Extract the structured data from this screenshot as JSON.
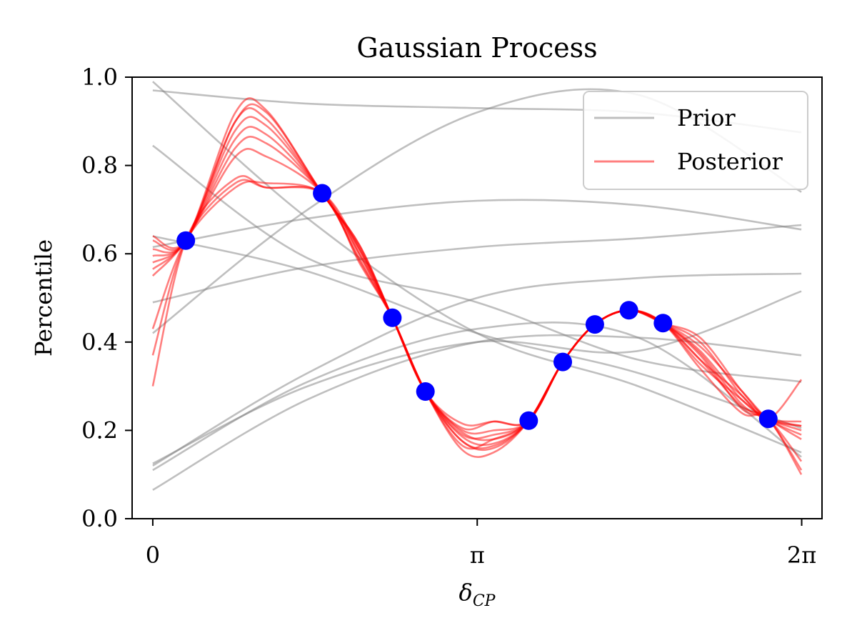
{
  "chart_data": {
    "type": "line",
    "title": "Gaussian Process",
    "xlabel": "δ",
    "xlabel_sub": "CP",
    "ylabel": "Percentile",
    "xlim": [
      -0.2,
      6.48
    ],
    "ylim": [
      0,
      1
    ],
    "x_ticks": [
      {
        "value": 0,
        "label": "0"
      },
      {
        "value": 3.14159,
        "label": "π"
      },
      {
        "value": 6.28318,
        "label": "2π"
      }
    ],
    "y_ticks": [
      {
        "value": 0.0,
        "label": "0.0"
      },
      {
        "value": 0.2,
        "label": "0.2"
      },
      {
        "value": 0.4,
        "label": "0.4"
      },
      {
        "value": 0.6,
        "label": "0.6"
      },
      {
        "value": 0.8,
        "label": "0.8"
      },
      {
        "value": 1.0,
        "label": "1.0"
      }
    ],
    "grid": false,
    "legend_position": "top-right",
    "colors": {
      "prior": "#808080",
      "posterior": "#ff0000",
      "observations": "#0000ff"
    },
    "legend": [
      {
        "name": "Prior",
        "color": "#808080"
      },
      {
        "name": "Posterior",
        "color": "#ff0000"
      }
    ],
    "observations": {
      "x": [
        0.32,
        1.64,
        2.32,
        2.64,
        3.64,
        3.97,
        4.28,
        4.61,
        4.94,
        5.96
      ],
      "y": [
        0.63,
        0.737,
        0.455,
        0.288,
        0.222,
        0.355,
        0.44,
        0.472,
        0.443,
        0.226
      ]
    },
    "prior_curves": [
      {
        "x": [
          0,
          1.5,
          3.14,
          4.7,
          6.28
        ],
        "y": [
          0.99,
          0.68,
          0.42,
          0.3,
          0.15
        ]
      },
      {
        "x": [
          0,
          1.5,
          3.14,
          4.7,
          6.28
        ],
        "y": [
          0.97,
          0.94,
          0.93,
          0.92,
          0.875
        ]
      },
      {
        "x": [
          0,
          1.5,
          3.14,
          4.7,
          6.28
        ],
        "y": [
          0.845,
          0.59,
          0.49,
          0.36,
          0.31
        ]
      },
      {
        "x": [
          0,
          1.5,
          3.14,
          4.7,
          6.28
        ],
        "y": [
          0.42,
          0.7,
          0.92,
          0.96,
          0.74
        ]
      },
      {
        "x": [
          0,
          1.5,
          3.14,
          4.7,
          6.28
        ],
        "y": [
          0.615,
          0.68,
          0.72,
          0.71,
          0.655
        ]
      },
      {
        "x": [
          0,
          1.5,
          3.14,
          4.7,
          6.28
        ],
        "y": [
          0.49,
          0.57,
          0.615,
          0.635,
          0.665
        ]
      },
      {
        "x": [
          0,
          1.5,
          3.14,
          4.7,
          6.28
        ],
        "y": [
          0.12,
          0.33,
          0.5,
          0.545,
          0.555
        ]
      },
      {
        "x": [
          0,
          1.5,
          3.14,
          4.7,
          6.28
        ],
        "y": [
          0.065,
          0.27,
          0.4,
          0.41,
          0.37
        ]
      },
      {
        "x": [
          0,
          1.5,
          3.14,
          4.7,
          6.28
        ],
        "y": [
          0.11,
          0.31,
          0.43,
          0.41,
          0.14
        ]
      },
      {
        "x": [
          0,
          1.5,
          3.14,
          4.7,
          6.28
        ],
        "y": [
          0.64,
          0.56,
          0.42,
          0.33,
          0.205
        ]
      },
      {
        "x": [
          0,
          1.5,
          3.14,
          4.7,
          6.28
        ],
        "y": [
          0.125,
          0.3,
          0.4,
          0.38,
          0.515
        ]
      }
    ],
    "posterior_mean": {
      "x": [
        0,
        0.32,
        0.8,
        1.1,
        1.64,
        2.0,
        2.32,
        2.64,
        3.0,
        3.3,
        3.64,
        3.97,
        4.28,
        4.61,
        4.94,
        5.3,
        5.7,
        5.96,
        6.28
      ],
      "y": [
        0.56,
        0.63,
        0.82,
        0.85,
        0.737,
        0.6,
        0.455,
        0.288,
        0.185,
        0.18,
        0.222,
        0.355,
        0.44,
        0.472,
        0.443,
        0.36,
        0.26,
        0.226,
        0.18
      ]
    },
    "posterior_samples": [
      {
        "dy": [
          0.07,
          0,
          0.1,
          0.075,
          0,
          0.02,
          0,
          0,
          0.01,
          0.0,
          0,
          0,
          0,
          0,
          0,
          0.02,
          0.01,
          0,
          0.02
        ]
      },
      {
        "dy": [
          0.05,
          0,
          0.08,
          0.055,
          0,
          0.015,
          0,
          0,
          0.005,
          0.01,
          0,
          0,
          0,
          0,
          0,
          0.04,
          0.02,
          0,
          0.0
        ]
      },
      {
        "dy": [
          0.035,
          0,
          0.06,
          0.04,
          0,
          0.01,
          0,
          0,
          0.0,
          -0.01,
          0,
          0,
          0,
          0,
          0,
          0.01,
          -0.01,
          0,
          -0.05
        ]
      },
      {
        "dy": [
          0.02,
          0,
          0.04,
          0.02,
          0,
          0.0,
          0,
          0,
          -0.01,
          -0.015,
          0,
          0,
          0,
          0,
          0,
          0.015,
          0.0,
          0,
          0.03
        ]
      },
      {
        "dy": [
          0.005,
          0,
          0.02,
          0.0,
          0,
          -0.01,
          0,
          0,
          -0.02,
          0.0,
          0,
          0,
          0,
          0,
          0,
          0.0,
          -0.005,
          0,
          -0.07
        ]
      },
      {
        "dy": [
          -0.01,
          0,
          0.0,
          -0.03,
          0,
          -0.015,
          0,
          0,
          0.02,
          0.04,
          0,
          0,
          0,
          0,
          0,
          -0.01,
          0.01,
          0,
          0.04
        ]
      },
      {
        "dy": [
          -0.13,
          0,
          -0.07,
          -0.09,
          0,
          0.0,
          0,
          0,
          0.015,
          0.02,
          0,
          0,
          0,
          0,
          0,
          -0.02,
          -0.02,
          0,
          -0.08
        ]
      },
      {
        "dy": [
          -0.19,
          0,
          -0.06,
          -0.1,
          0,
          0.01,
          0,
          0,
          -0.03,
          -0.03,
          0,
          0,
          0,
          0,
          0,
          0.0,
          0.02,
          0,
          0.135
        ]
      },
      {
        "dy": [
          -0.26,
          0,
          -0.05,
          -0.1,
          0,
          -0.02,
          0,
          0,
          -0.01,
          -0.02,
          0,
          0,
          0,
          0,
          0,
          0.03,
          0.03,
          0,
          0.01
        ]
      },
      {
        "dy": [
          0.08,
          0,
          0.08,
          0.07,
          0,
          0.02,
          0,
          0,
          0.03,
          0.04,
          0,
          0,
          0,
          0,
          0,
          0.05,
          0.03,
          0,
          0.03
        ]
      }
    ]
  }
}
